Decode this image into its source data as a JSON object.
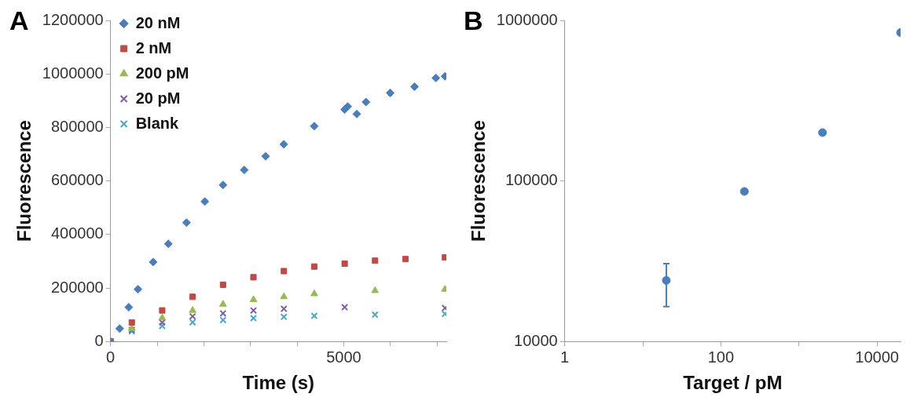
{
  "chart_data": [
    {
      "type": "scatter",
      "annotations": [
        "A"
      ],
      "xlabel": "Time (s)",
      "ylabel": "Fluorescence",
      "xlim": [
        0,
        7200
      ],
      "xticks": [
        0,
        {
          "value": 1000,
          "label": null
        },
        {
          "value": 2000,
          "label": null
        },
        {
          "value": 3000,
          "label": null
        },
        {
          "value": 4000,
          "label": null
        },
        5000,
        {
          "value": 6000,
          "label": null
        },
        {
          "value": 7000,
          "label": null
        }
      ],
      "ylim": [
        0,
        1200000
      ],
      "yticks": [
        0,
        200000,
        400000,
        600000,
        800000,
        1000000,
        1200000
      ],
      "grid": false,
      "legend": "top left",
      "series": [
        {
          "name": "20 nM",
          "color": "#4a7ebb",
          "marker": "diamond",
          "x": [
            0,
            196,
            391,
            587,
            913,
            1239,
            1630,
            2021,
            2412,
            2868,
            3325,
            3716,
            4368,
            5020,
            5085,
            5280,
            5476,
            5997,
            6519,
            6975,
            7170
          ],
          "values": [
            0,
            48000,
            128000,
            195000,
            297000,
            365000,
            444000,
            523000,
            585000,
            641000,
            692000,
            737000,
            805000,
            867000,
            878000,
            850000,
            895000,
            929000,
            952000,
            985000,
            991000
          ]
        },
        {
          "name": "2 nM",
          "color": "#be4b48",
          "marker": "square",
          "x": [
            0,
            456,
            1108,
            1760,
            2412,
            3064,
            3716,
            4368,
            5020,
            5671,
            6323,
            7170
          ],
          "values": [
            0,
            71000,
            116000,
            167000,
            212000,
            240000,
            263000,
            280000,
            291000,
            302000,
            308000,
            314000
          ]
        },
        {
          "name": "200 pM",
          "color": "#98b954",
          "marker": "triangle",
          "x": [
            0,
            456,
            1108,
            1760,
            2412,
            3064,
            3716,
            4368,
            5671,
            7170
          ],
          "values": [
            0,
            48000,
            88000,
            116000,
            139000,
            156000,
            167000,
            178000,
            190000,
            195000
          ]
        },
        {
          "name": "20 pM",
          "color": "#7d60a0",
          "marker": "cross",
          "x": [
            0,
            456,
            1108,
            1760,
            2412,
            3064,
            3716,
            5020,
            7170
          ],
          "values": [
            0,
            43000,
            71000,
            94000,
            105000,
            116000,
            122000,
            128000,
            125000
          ]
        },
        {
          "name": "Blank",
          "color": "#46aac5",
          "marker": "cross",
          "x": [
            0,
            456,
            1108,
            1760,
            2412,
            3064,
            3716,
            4368,
            5671,
            7170
          ],
          "values": [
            0,
            38000,
            58000,
            72000,
            80000,
            87000,
            92000,
            96000,
            100000,
            103000
          ]
        }
      ]
    },
    {
      "type": "scatter",
      "annotations": [
        "B"
      ],
      "xlabel": "Target / pM",
      "ylabel": "Fluorescence",
      "log": "xy",
      "xlim": [
        1,
        20000
      ],
      "xticks": [
        1,
        {
          "value": 10,
          "label": null
        },
        100,
        {
          "value": 1000,
          "label": null
        },
        10000
      ],
      "ylim": [
        10000,
        1000000
      ],
      "yticks": [
        10000,
        100000,
        1000000
      ],
      "grid": false,
      "marker": "circle",
      "series": [
        {
          "color": "#4a7ebb",
          "x": [
            20,
            200,
            2000,
            20000
          ],
          "values": [
            24000,
            86000,
            200000,
            840000
          ],
          "errors": [
            [
              16500,
              30500
            ],
            null,
            null,
            null
          ]
        }
      ]
    }
  ]
}
